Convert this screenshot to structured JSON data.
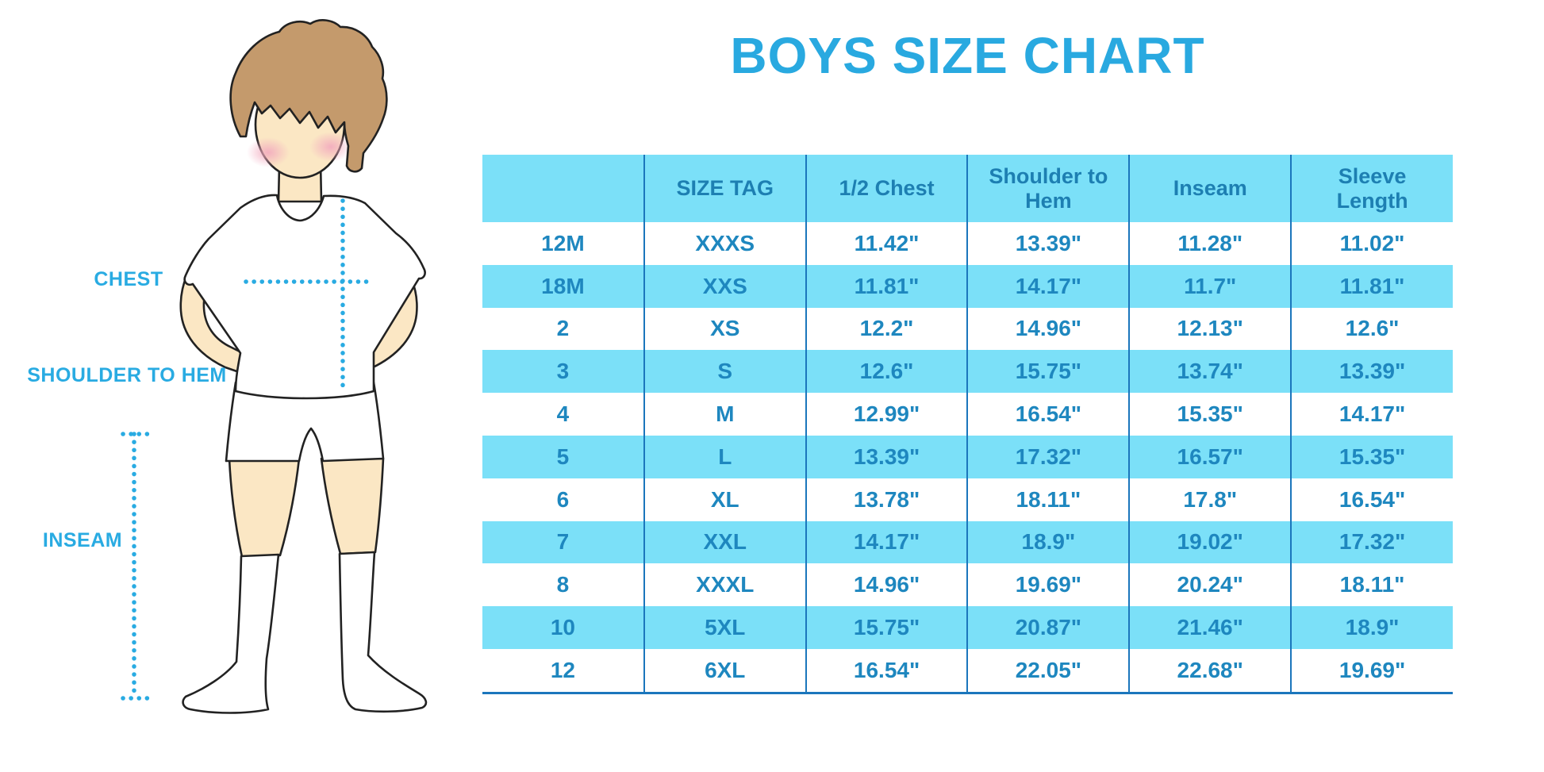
{
  "title": "BOYS SIZE CHART",
  "figure": {
    "labels": {
      "chest": "CHEST",
      "shoulder_to_hem": "SHOULDER TO HEM",
      "inseam": "INSEAM"
    }
  },
  "colors": {
    "title_blue": "#29A9E0",
    "label_blue": "#29ABE2",
    "stripe_blue": "#7BE0F8",
    "grid_line_blue": "#1B76BC",
    "cell_text_blue": "#1E87BF",
    "header_text_blue": "#1D7FB2",
    "skin": "#FBE7C4",
    "hair_brown": "#C49A6C"
  },
  "chart_data": {
    "type": "table",
    "title": "BOYS SIZE CHART",
    "columns": [
      "",
      "SIZE TAG",
      "1/2 Chest",
      "Shoulder to Hem",
      "Inseam",
      "Sleeve Length"
    ],
    "rows": [
      [
        "12M",
        "XXXS",
        "11.42\"",
        "13.39\"",
        "11.28\"",
        "11.02\""
      ],
      [
        "18M",
        "XXS",
        "11.81\"",
        "14.17\"",
        "11.7\"",
        "11.81\""
      ],
      [
        "2",
        "XS",
        "12.2\"",
        "14.96\"",
        "12.13\"",
        "12.6\""
      ],
      [
        "3",
        "S",
        "12.6\"",
        "15.75\"",
        "13.74\"",
        "13.39\""
      ],
      [
        "4",
        "M",
        "12.99\"",
        "16.54\"",
        "15.35\"",
        "14.17\""
      ],
      [
        "5",
        "L",
        "13.39\"",
        "17.32\"",
        "16.57\"",
        "15.35\""
      ],
      [
        "6",
        "XL",
        "13.78\"",
        "18.11\"",
        "17.8\"",
        "16.54\""
      ],
      [
        "7",
        "XXL",
        "14.17\"",
        "18.9\"",
        "19.02\"",
        "17.32\""
      ],
      [
        "8",
        "XXXL",
        "14.96\"",
        "19.69\"",
        "20.24\"",
        "18.11\""
      ],
      [
        "10",
        "5XL",
        "15.75\"",
        "20.87\"",
        "21.46\"",
        "18.9\""
      ],
      [
        "12",
        "6XL",
        "16.54\"",
        "22.05\"",
        "22.68\"",
        "19.69\""
      ]
    ],
    "striped_row_labels": [
      "18M",
      "3",
      "5",
      "7",
      "10"
    ],
    "units": "inches",
    "legend_position": "none",
    "grid": "column-separators-and-striped-rows"
  }
}
